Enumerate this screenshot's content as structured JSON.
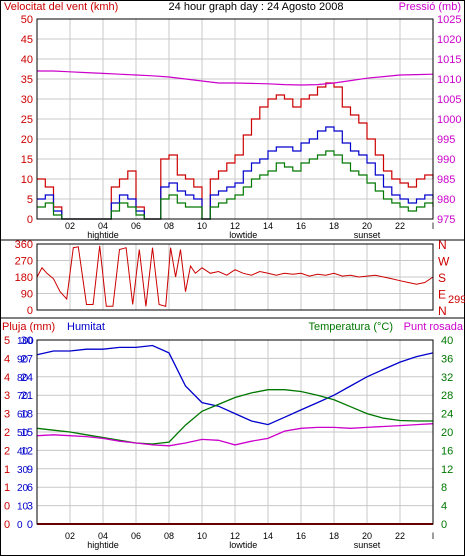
{
  "colors": {
    "axis": "#000000",
    "grid": "#c8c8c8",
    "red": "#cc0000",
    "blue": "#0000cc",
    "green": "#007700",
    "magenta": "#cc00cc"
  },
  "chart_data": [
    {
      "id": "wind-pressure",
      "type": "line",
      "title": "24 hour graph day : 24 Agosto 2008",
      "left_axis_label": "Velocitat del vent (kmh)",
      "right_axis_label": "Pressió (mb)",
      "x_ticks": [
        "02",
        "04",
        "06",
        "08",
        "10",
        "12",
        "14",
        "16",
        "18",
        "20",
        "22",
        "l"
      ],
      "x_events": [
        "hightide",
        "lowtide",
        "sunset"
      ],
      "left_ticks": [
        "0",
        "5",
        "10",
        "15",
        "20",
        "25",
        "30",
        "35",
        "40",
        "45",
        "50"
      ],
      "right_ticks": [
        "975",
        "980",
        "985",
        "990",
        "995",
        "1000",
        "1005",
        "1010",
        "1015",
        "1020",
        "1025"
      ],
      "ylim_left": [
        0,
        50
      ],
      "ylim_right": [
        975,
        1025
      ],
      "series": [
        {
          "color": "red",
          "axis": "left",
          "x": [
            0,
            0.5,
            1,
            1.5,
            2,
            2.5,
            3,
            3.5,
            4,
            4.5,
            5,
            5.5,
            6,
            6.5,
            7,
            7.5,
            8,
            8.5,
            9,
            9.5,
            10,
            10.5,
            11,
            11.5,
            12,
            12.5,
            13,
            13.5,
            14,
            14.5,
            15,
            15.5,
            16,
            16.5,
            17,
            17.5,
            18,
            18.5,
            19,
            19.5,
            20,
            20.5,
            21,
            21.5,
            22,
            22.5,
            23,
            23.5,
            24
          ],
          "values": [
            10,
            8,
            3,
            0,
            0,
            0,
            0,
            0,
            0,
            8,
            10,
            12,
            3,
            0,
            0,
            15,
            16,
            11,
            10,
            8,
            0,
            10,
            12,
            14,
            16,
            21,
            25,
            28,
            30,
            31,
            30,
            28,
            30,
            31,
            33,
            34,
            33,
            28,
            26,
            24,
            20,
            16,
            12,
            10,
            9,
            8,
            10,
            11,
            10
          ]
        },
        {
          "color": "blue",
          "axis": "left",
          "x": [
            0,
            0.5,
            1,
            1.5,
            2,
            2.5,
            3,
            3.5,
            4,
            4.5,
            5,
            5.5,
            6,
            6.5,
            7,
            7.5,
            8,
            8.5,
            9,
            9.5,
            10,
            10.5,
            11,
            11.5,
            12,
            12.5,
            13,
            13.5,
            14,
            14.5,
            15,
            15.5,
            16,
            16.5,
            17,
            17.5,
            18,
            18.5,
            19,
            19.5,
            20,
            20.5,
            21,
            21.5,
            22,
            22.5,
            23,
            23.5,
            24
          ],
          "values": [
            5,
            6,
            2,
            0,
            0,
            0,
            0,
            0,
            0,
            4,
            6,
            5,
            2,
            0,
            0,
            8,
            9,
            7,
            6,
            5,
            0,
            6,
            7,
            8,
            9,
            12,
            14,
            15,
            17,
            18,
            18,
            17,
            19,
            20,
            22,
            23,
            22,
            19,
            17,
            16,
            14,
            11,
            8,
            6,
            5,
            4,
            5,
            6,
            5
          ]
        },
        {
          "color": "green",
          "axis": "left",
          "x": [
            0,
            0.5,
            1,
            1.5,
            2,
            2.5,
            3,
            3.5,
            4,
            4.5,
            5,
            5.5,
            6,
            6.5,
            7,
            7.5,
            8,
            8.5,
            9,
            9.5,
            10,
            10.5,
            11,
            11.5,
            12,
            12.5,
            13,
            13.5,
            14,
            14.5,
            15,
            15.5,
            16,
            16.5,
            17,
            17.5,
            18,
            18.5,
            19,
            19.5,
            20,
            20.5,
            21,
            21.5,
            22,
            22.5,
            23,
            23.5,
            24
          ],
          "values": [
            3,
            4,
            1,
            0,
            0,
            0,
            0,
            0,
            0,
            2,
            4,
            3,
            1,
            0,
            0,
            5,
            6,
            4,
            3,
            3,
            0,
            3,
            4,
            5,
            6,
            8,
            10,
            11,
            12,
            14,
            13,
            12,
            14,
            15,
            16,
            17,
            16,
            14,
            12,
            11,
            9,
            7,
            5,
            4,
            3,
            2,
            3,
            4,
            3
          ]
        },
        {
          "color": "magenta",
          "axis": "right",
          "x": [
            0,
            1,
            2,
            3,
            4,
            5,
            6,
            7,
            8,
            9,
            10,
            11,
            12,
            13,
            14,
            15,
            16,
            17,
            18,
            19,
            20,
            21,
            22,
            23,
            24
          ],
          "values": [
            1012,
            1012,
            1011.8,
            1011.6,
            1011.4,
            1011.2,
            1011,
            1010.8,
            1010.5,
            1010,
            1009.5,
            1009,
            1009,
            1008.9,
            1008.8,
            1008.6,
            1008.5,
            1008.6,
            1009,
            1009.6,
            1010.2,
            1010.6,
            1011,
            1011.1,
            1011.2
          ]
        }
      ]
    },
    {
      "id": "wind-direction",
      "type": "line",
      "left_ticks": [
        "0",
        "90",
        "180",
        "270",
        "360"
      ],
      "right_ticks": [
        "N",
        "W",
        "S",
        "E",
        "N"
      ],
      "current_value": "299",
      "ylim": [
        0,
        360
      ],
      "series": [
        {
          "color": "red",
          "x": [
            0,
            0.3,
            0.6,
            1,
            1.4,
            1.8,
            2,
            2.2,
            2.5,
            3,
            3.4,
            3.8,
            4.2,
            4.6,
            5,
            5.4,
            5.8,
            6.2,
            6.6,
            7,
            7.4,
            7.8,
            8.1,
            8.4,
            8.7,
            9,
            9.3,
            9.6,
            10,
            10.5,
            11,
            11.5,
            12,
            12.5,
            13,
            13.5,
            14,
            14.5,
            15,
            15.5,
            16,
            16.5,
            17,
            17.5,
            18,
            18.5,
            19,
            19.5,
            20,
            20.5,
            21,
            21.5,
            22,
            22.5,
            23,
            23.5,
            24
          ],
          "values": [
            180,
            230,
            200,
            170,
            100,
            60,
            200,
            340,
            345,
            30,
            30,
            350,
            20,
            20,
            330,
            340,
            30,
            330,
            20,
            340,
            30,
            20,
            340,
            180,
            330,
            100,
            240,
            200,
            230,
            200,
            210,
            190,
            220,
            200,
            190,
            210,
            200,
            190,
            200,
            195,
            200,
            185,
            195,
            190,
            200,
            185,
            190,
            180,
            185,
            190,
            180,
            170,
            160,
            150,
            140,
            150,
            180
          ]
        }
      ]
    },
    {
      "id": "rain-humidity-temp",
      "type": "line",
      "left_labels": [
        "Pluja (mm)",
        "Humitat"
      ],
      "right_labels": [
        "Temperatura (°C)",
        "Punt rosada"
      ],
      "left_rain_ticks": [
        "0",
        "0",
        "1",
        "1",
        "2",
        "2",
        "3",
        "3",
        "4",
        "4",
        "5"
      ],
      "left_humidity_ticks": [
        "0",
        "10",
        "20",
        "30",
        "40",
        "50",
        "60",
        "70",
        "80",
        "90",
        "100"
      ],
      "left_temp_ticks": [
        "0",
        "3",
        "6",
        "9",
        "12",
        "15",
        "18",
        "21",
        "24",
        "27",
        "30"
      ],
      "right_ticks": [
        "0",
        "4",
        "8",
        "12",
        "16",
        "20",
        "24",
        "28",
        "32",
        "36",
        "40"
      ],
      "x_ticks": [
        "02",
        "04",
        "06",
        "08",
        "10",
        "12",
        "14",
        "16",
        "18",
        "20",
        "22",
        "l"
      ],
      "x_events": [
        "hightide",
        "lowtide",
        "sunset"
      ],
      "ylim_humidity": [
        0,
        100
      ],
      "ylim_temperature": [
        0,
        40
      ],
      "series": [
        {
          "color": "blue",
          "axis": "humidity",
          "x": [
            0,
            1,
            2,
            3,
            4,
            5,
            6,
            7,
            8,
            9,
            10,
            11,
            12,
            13,
            14,
            15,
            16,
            17,
            18,
            19,
            20,
            21,
            22,
            23,
            24
          ],
          "values": [
            92,
            94,
            94,
            95,
            95,
            96,
            96,
            97,
            93,
            75,
            66,
            64,
            60,
            56,
            54,
            58,
            62,
            66,
            70,
            75,
            80,
            84,
            88,
            91,
            93
          ]
        },
        {
          "color": "green",
          "axis": "temperature",
          "x": [
            0,
            1,
            2,
            3,
            4,
            5,
            6,
            7,
            8,
            9,
            10,
            11,
            12,
            13,
            14,
            15,
            16,
            17,
            18,
            19,
            20,
            21,
            22,
            23,
            24
          ],
          "values": [
            20.8,
            20.4,
            20,
            19.4,
            18.8,
            18.2,
            17.6,
            17.4,
            17.8,
            21.5,
            24.5,
            26,
            27.5,
            28.5,
            29.2,
            29.2,
            28.8,
            28,
            27,
            25.5,
            24,
            23,
            22.5,
            22.4,
            22.4
          ]
        },
        {
          "color": "magenta",
          "axis": "temperature",
          "x": [
            0,
            1,
            2,
            3,
            4,
            5,
            6,
            7,
            8,
            9,
            10,
            11,
            12,
            13,
            14,
            15,
            16,
            17,
            18,
            19,
            20,
            21,
            22,
            23,
            24
          ],
          "values": [
            19.2,
            19.4,
            19.2,
            19,
            18.6,
            18,
            17.6,
            17.2,
            17,
            17.6,
            18.4,
            18.2,
            17.2,
            18,
            18.6,
            20.2,
            20.8,
            21,
            21,
            20.8,
            21,
            21.2,
            21.4,
            21.6,
            21.8
          ]
        },
        {
          "color": "red",
          "axis": "rain",
          "x": [
            0,
            24
          ],
          "values": [
            0,
            0
          ]
        }
      ]
    }
  ]
}
